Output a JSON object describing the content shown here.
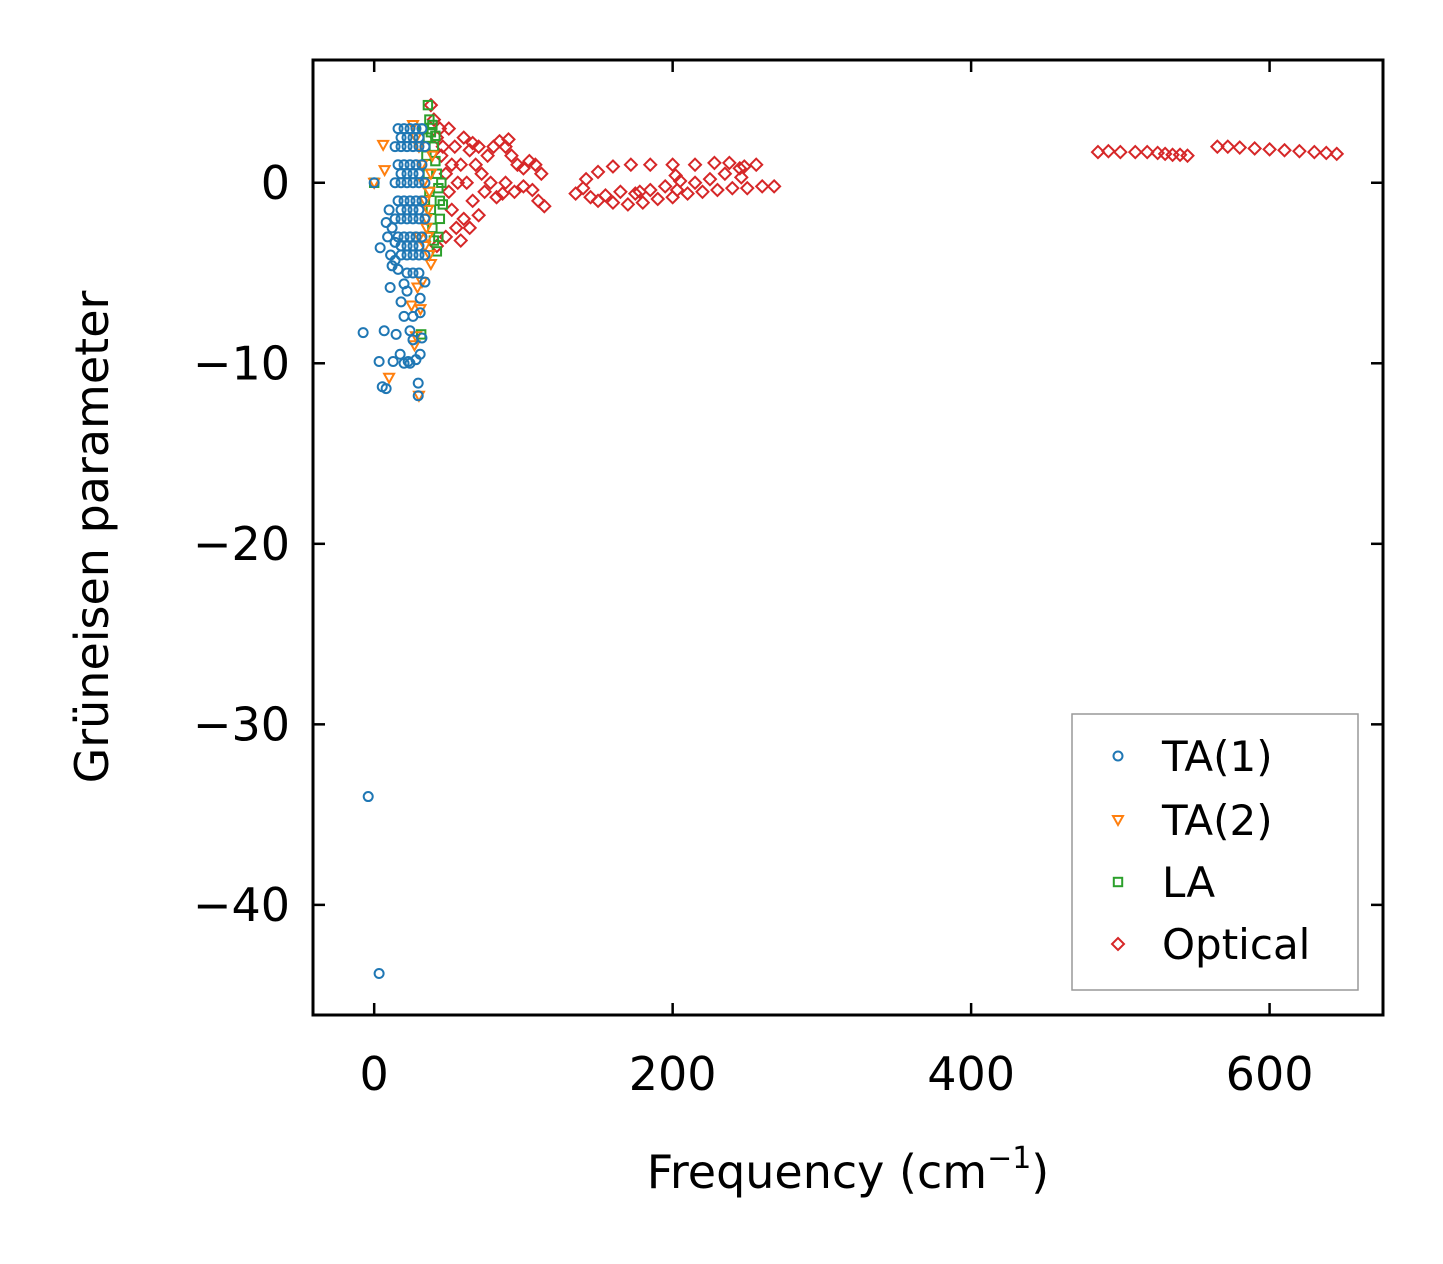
{
  "chart_data": {
    "type": "scatter",
    "title": "",
    "xlabel": "Frequency (cm",
    "xlabel_sup": "−1",
    "xlabel_end": ")",
    "ylabel": "Grüneisen parameter",
    "xlim": [
      -41,
      676
    ],
    "ylim": [
      -46.1,
      6.8
    ],
    "xticks": [
      0,
      200,
      400,
      600
    ],
    "xtick_labels": [
      "0",
      "200",
      "400",
      "600"
    ],
    "yticks": [
      0,
      -10,
      -20,
      -30,
      -40
    ],
    "ytick_labels": [
      "0",
      "−10",
      "−20",
      "−30",
      "−40"
    ],
    "grid": false,
    "legend_placement": "lower-right",
    "series": [
      {
        "name": "Optical",
        "marker": "diamond",
        "color": "#d62728",
        "points": [
          [
            38,
            4.3
          ],
          [
            40,
            3.5
          ],
          [
            42,
            2.5
          ],
          [
            45,
            1.5
          ],
          [
            48,
            0.5
          ],
          [
            50,
            -0.5
          ],
          [
            52,
            -1.5
          ],
          [
            55,
            -2.5
          ],
          [
            58,
            -3.2
          ],
          [
            44,
            3
          ],
          [
            46,
            2
          ],
          [
            50,
            3
          ],
          [
            54,
            2
          ],
          [
            58,
            1
          ],
          [
            62,
            0
          ],
          [
            66,
            -1
          ],
          [
            70,
            -1.8
          ],
          [
            60,
            2.5
          ],
          [
            64,
            1.8
          ],
          [
            68,
            1
          ],
          [
            72,
            0.5
          ],
          [
            76,
            1.5
          ],
          [
            80,
            2
          ],
          [
            84,
            2.3
          ],
          [
            88,
            2
          ],
          [
            92,
            1.5
          ],
          [
            96,
            1
          ],
          [
            100,
            0.8
          ],
          [
            104,
            1.2
          ],
          [
            108,
            1
          ],
          [
            112,
            0.5
          ],
          [
            110,
            -1
          ],
          [
            100,
            -0.2
          ],
          [
            94,
            -0.5
          ],
          [
            88,
            0
          ],
          [
            82,
            -0.8
          ],
          [
            78,
            0
          ],
          [
            74,
            -0.5
          ],
          [
            66,
            2.2
          ],
          [
            56,
            0
          ],
          [
            60,
            -2
          ],
          [
            64,
            -2.5
          ],
          [
            48,
            -3
          ],
          [
            42,
            -3.5
          ],
          [
            52,
            1
          ],
          [
            86,
            -0.6
          ],
          [
            106,
            -0.4
          ],
          [
            114,
            -1.3
          ],
          [
            90,
            2.4
          ],
          [
            70,
            2
          ],
          [
            135,
            -0.6
          ],
          [
            140,
            -0.3
          ],
          [
            145,
            -0.8
          ],
          [
            150,
            -1
          ],
          [
            160,
            -1.1
          ],
          [
            170,
            -1.2
          ],
          [
            180,
            -1.1
          ],
          [
            190,
            -0.9
          ],
          [
            200,
            -0.8
          ],
          [
            210,
            -0.6
          ],
          [
            220,
            -0.5
          ],
          [
            230,
            -0.4
          ],
          [
            240,
            -0.3
          ],
          [
            250,
            -0.3
          ],
          [
            260,
            -0.2
          ],
          [
            268,
            -0.2
          ],
          [
            155,
            -0.7
          ],
          [
            165,
            -0.5
          ],
          [
            175,
            -0.6
          ],
          [
            185,
            -0.4
          ],
          [
            195,
            -0.2
          ],
          [
            205,
            0.1
          ],
          [
            215,
            0
          ],
          [
            225,
            0.2
          ],
          [
            235,
            0.5
          ],
          [
            245,
            0.8
          ],
          [
            202,
            0.4
          ],
          [
            203,
            -0.4
          ],
          [
            142,
            0.2
          ],
          [
            150,
            0.6
          ],
          [
            160,
            0.9
          ],
          [
            172,
            1.0
          ],
          [
            185,
            1.0
          ],
          [
            200,
            1.0
          ],
          [
            215,
            1.0
          ],
          [
            228,
            1.1
          ],
          [
            238,
            1.1
          ],
          [
            248,
            0.9
          ],
          [
            256,
            1.0
          ],
          [
            246,
            0.3
          ],
          [
            178,
            -0.5
          ],
          [
            485,
            1.7
          ],
          [
            492,
            1.75
          ],
          [
            500,
            1.7
          ],
          [
            510,
            1.7
          ],
          [
            518,
            1.7
          ],
          [
            525,
            1.65
          ],
          [
            530,
            1.6
          ],
          [
            535,
            1.55
          ],
          [
            540,
            1.55
          ],
          [
            545,
            1.5
          ],
          [
            565,
            2.0
          ],
          [
            572,
            2.0
          ],
          [
            580,
            1.95
          ],
          [
            590,
            1.9
          ],
          [
            600,
            1.85
          ],
          [
            610,
            1.8
          ],
          [
            620,
            1.75
          ],
          [
            630,
            1.7
          ],
          [
            638,
            1.65
          ],
          [
            645,
            1.6
          ]
        ]
      },
      {
        "name": "LA",
        "marker": "square",
        "color": "#2ca02c",
        "points": [
          [
            0,
            0
          ],
          [
            31.5,
            -8.4
          ],
          [
            36,
            4.3
          ],
          [
            37,
            3.5
          ],
          [
            38,
            2.8
          ],
          [
            40,
            2
          ],
          [
            41,
            1.2
          ],
          [
            42,
            0.5
          ],
          [
            43,
            -0.3
          ],
          [
            44,
            -1
          ],
          [
            44,
            -2
          ],
          [
            43,
            -3
          ],
          [
            42,
            -3.8
          ],
          [
            36,
            2.5
          ],
          [
            35,
            1.5
          ],
          [
            36,
            0.5
          ],
          [
            37,
            -0.5
          ],
          [
            38,
            -1.5
          ],
          [
            39,
            -2.5
          ],
          [
            40,
            -3.2
          ],
          [
            33,
            3
          ],
          [
            34,
            -1
          ],
          [
            45,
            0
          ],
          [
            46,
            -1.2
          ],
          [
            39,
            3.2
          ],
          [
            41,
            2.6
          ]
        ]
      },
      {
        "name": "TA(2)",
        "marker": "triangle",
        "color": "#ff7f0e",
        "points": [
          [
            6,
            2.1
          ],
          [
            7,
            0.7
          ],
          [
            10,
            -10.8
          ],
          [
            0,
            0
          ],
          [
            26,
            3.2
          ],
          [
            28,
            2.5
          ],
          [
            30,
            2
          ],
          [
            32,
            1
          ],
          [
            33,
            0
          ],
          [
            34,
            -1
          ],
          [
            35,
            -2
          ],
          [
            36,
            -3
          ],
          [
            37,
            -4
          ],
          [
            38,
            -4.5
          ],
          [
            30,
            -3
          ],
          [
            29,
            -5.8
          ],
          [
            31,
            -7
          ],
          [
            30,
            -11.8
          ],
          [
            34,
            -3.5
          ],
          [
            35,
            -2.5
          ],
          [
            36,
            -1.5
          ],
          [
            37,
            -0.5
          ],
          [
            38,
            0.5
          ],
          [
            39,
            1.5
          ],
          [
            27,
            -9
          ],
          [
            25,
            -6.8
          ],
          [
            28,
            -8.5
          ],
          [
            32,
            -5.5
          ]
        ]
      },
      {
        "name": "TA(1)",
        "marker": "circle",
        "color": "#1f77b4",
        "points": [
          [
            -4,
            -34.0
          ],
          [
            3.3,
            -43.8
          ],
          [
            -7.4,
            -8.3
          ],
          [
            3.3,
            -9.9
          ],
          [
            5.4,
            -11.3
          ],
          [
            8,
            -11.4
          ],
          [
            6.7,
            -8.2
          ],
          [
            4,
            -3.6
          ],
          [
            10.7,
            -5.8
          ],
          [
            14.7,
            -8.4
          ],
          [
            29.5,
            -11.8
          ],
          [
            29.5,
            -11.1
          ],
          [
            22.8,
            -9.9
          ],
          [
            12.7,
            -9.9
          ],
          [
            30.8,
            -9.5
          ],
          [
            17.4,
            -9.5
          ],
          [
            20,
            -7.4
          ],
          [
            30.8,
            -7.2
          ],
          [
            30.8,
            -6.4
          ],
          [
            0,
            0
          ],
          [
            10,
            -1.5
          ],
          [
            11,
            -4
          ],
          [
            12,
            -4.6
          ],
          [
            14,
            -4.3
          ],
          [
            16,
            -4.8
          ],
          [
            18,
            -6.6
          ],
          [
            20,
            -5.6
          ],
          [
            22,
            -6
          ],
          [
            24,
            -8.2
          ],
          [
            26,
            -8.7
          ],
          [
            28,
            -9.8
          ],
          [
            24,
            -10
          ],
          [
            20,
            -10
          ],
          [
            26,
            -7.4
          ],
          [
            32,
            -8.6
          ],
          [
            12,
            -2.5
          ],
          [
            14,
            -3.3
          ],
          [
            9,
            -3
          ],
          [
            8,
            -2.2
          ],
          [
            16,
            3
          ],
          [
            20,
            3
          ],
          [
            24,
            3
          ],
          [
            28,
            3
          ],
          [
            32,
            3
          ],
          [
            14,
            2
          ],
          [
            18,
            2
          ],
          [
            22,
            2
          ],
          [
            26,
            2
          ],
          [
            30,
            2
          ],
          [
            34,
            2
          ],
          [
            16,
            1
          ],
          [
            20,
            1
          ],
          [
            24,
            1
          ],
          [
            28,
            1
          ],
          [
            32,
            1
          ],
          [
            14,
            0
          ],
          [
            18,
            0
          ],
          [
            22,
            0
          ],
          [
            26,
            0
          ],
          [
            30,
            0
          ],
          [
            34,
            0
          ],
          [
            16,
            -1
          ],
          [
            20,
            -1
          ],
          [
            24,
            -1
          ],
          [
            28,
            -1
          ],
          [
            32,
            -1
          ],
          [
            14,
            -2
          ],
          [
            18,
            -2
          ],
          [
            22,
            -2
          ],
          [
            26,
            -2
          ],
          [
            30,
            -2
          ],
          [
            34,
            -2
          ],
          [
            16,
            -3
          ],
          [
            20,
            -3
          ],
          [
            24,
            -3
          ],
          [
            28,
            -3
          ],
          [
            32,
            -3
          ],
          [
            18,
            -4
          ],
          [
            22,
            -4
          ],
          [
            26,
            -4
          ],
          [
            30,
            -4
          ],
          [
            34,
            -4
          ],
          [
            22,
            -5
          ],
          [
            26,
            -5
          ],
          [
            30,
            -5
          ],
          [
            34,
            -5.5
          ],
          [
            18,
            2.5
          ],
          [
            22,
            2.5
          ],
          [
            26,
            2.5
          ],
          [
            30,
            2.5
          ],
          [
            18,
            0.5
          ],
          [
            22,
            0.5
          ],
          [
            26,
            0.5
          ],
          [
            30,
            0.5
          ],
          [
            18,
            -1.5
          ],
          [
            22,
            -1.5
          ],
          [
            26,
            -1.5
          ],
          [
            30,
            -1.5
          ],
          [
            18,
            -3.5
          ],
          [
            22,
            -3.5
          ],
          [
            26,
            -3.5
          ],
          [
            30,
            -3.5
          ]
        ]
      }
    ],
    "legend": [
      "TA(1)",
      "TA(2)",
      "LA",
      "Optical"
    ]
  }
}
